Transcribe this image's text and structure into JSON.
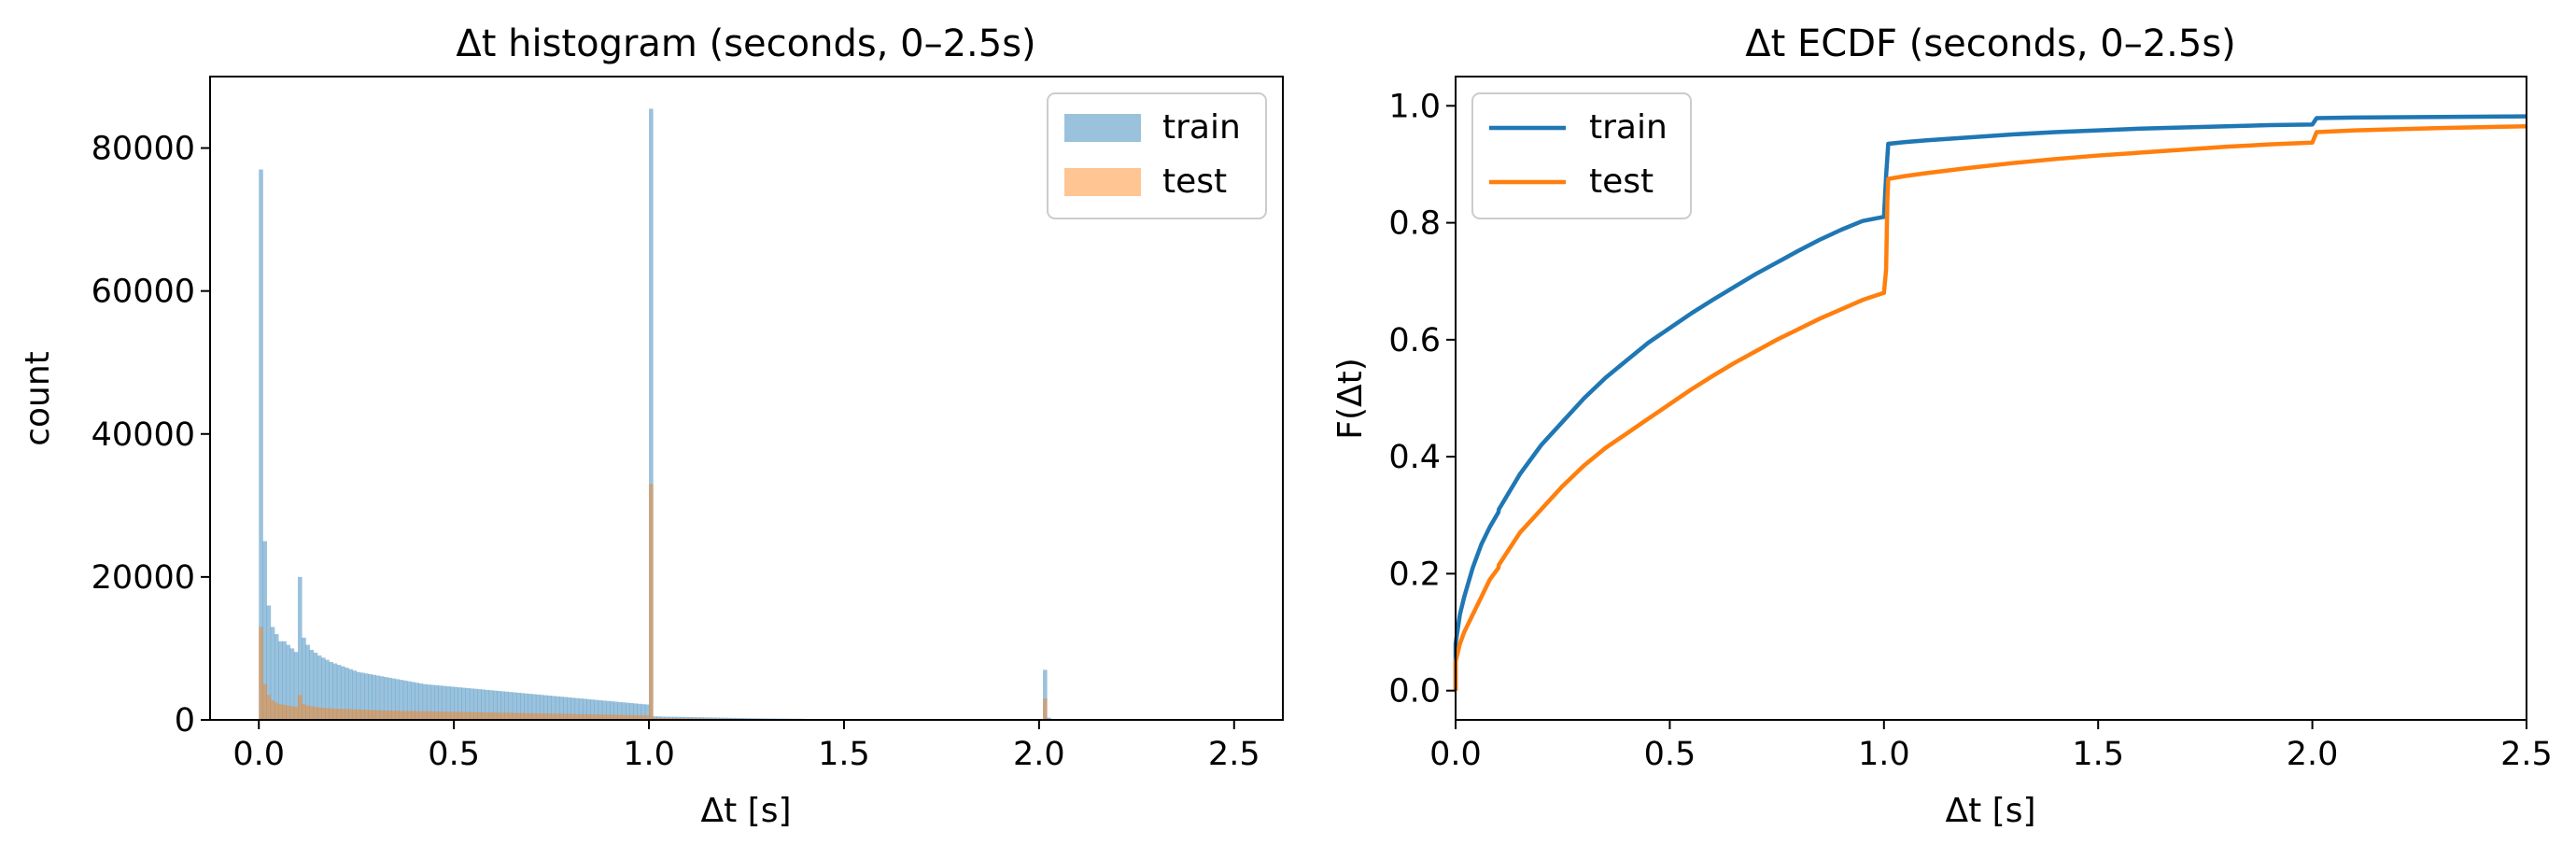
{
  "chart_data": [
    {
      "type": "histogram",
      "title": "Δt histogram (seconds, 0–2.5s)",
      "xlabel": "Δt [s]",
      "ylabel": "count",
      "xlim": [
        -0.125,
        2.625
      ],
      "ylim": [
        0,
        90000
      ],
      "xticks": [
        0.0,
        0.5,
        1.0,
        1.5,
        2.0,
        2.5
      ],
      "xtick_labels": [
        "0.0",
        "0.5",
        "1.0",
        "1.5",
        "2.0",
        "2.5"
      ],
      "yticks": [
        0,
        20000,
        40000,
        60000,
        80000
      ],
      "ytick_labels": [
        "0",
        "20000",
        "40000",
        "60000",
        "80000"
      ],
      "bin_width": 0.01,
      "grid": false,
      "legend": {
        "placement": "top-right",
        "entries": [
          "train",
          "test"
        ]
      },
      "series": [
        {
          "name": "train",
          "color": "#1f77b4",
          "alpha": 0.45,
          "counts": [
            77000,
            25000,
            16000,
            13000,
            12000,
            11000,
            11000,
            10500,
            10000,
            9500,
            20000,
            11500,
            10500,
            9800,
            9400,
            9000,
            8700,
            8400,
            8100,
            7900,
            7700,
            7500,
            7300,
            7100,
            6900,
            6700,
            6600,
            6500,
            6400,
            6300,
            6200,
            6100,
            6000,
            5900,
            5800,
            5700,
            5600,
            5500,
            5400,
            5300,
            5200,
            5100,
            5000,
            4950,
            4900,
            4850,
            4800,
            4750,
            4700,
            4650,
            4600,
            4550,
            4500,
            4450,
            4400,
            4350,
            4300,
            4250,
            4200,
            4150,
            4100,
            4050,
            4000,
            3950,
            3900,
            3850,
            3800,
            3750,
            3700,
            3650,
            3600,
            3550,
            3500,
            3450,
            3400,
            3350,
            3300,
            3250,
            3200,
            3150,
            3100,
            3050,
            3000,
            2950,
            2900,
            2850,
            2800,
            2750,
            2700,
            2650,
            2600,
            2550,
            2500,
            2450,
            2400,
            2350,
            2300,
            2250,
            2200,
            2150,
            85500,
            500,
            480,
            460,
            450,
            440,
            430,
            420,
            410,
            400,
            390,
            380,
            370,
            360,
            350,
            340,
            330,
            320,
            310,
            300,
            290,
            280,
            270,
            260,
            250,
            240,
            230,
            220,
            210,
            200,
            195,
            190,
            185,
            180,
            175,
            170,
            165,
            160,
            155,
            150,
            20,
            20,
            20,
            20,
            20,
            20,
            20,
            20,
            20,
            20,
            20,
            20,
            20,
            20,
            20,
            20,
            20,
            20,
            20,
            20,
            20,
            20,
            20,
            20,
            20,
            20,
            20,
            20,
            20,
            20,
            20,
            20,
            20,
            20,
            20,
            20,
            20,
            20,
            20,
            20,
            20,
            20,
            20,
            20,
            20,
            20,
            20,
            20,
            20,
            20,
            20,
            20,
            20,
            20,
            20,
            20,
            20,
            20,
            20,
            20,
            20,
            7000,
            300,
            0,
            0,
            0,
            0,
            0,
            0,
            0,
            0,
            0,
            0,
            0,
            0,
            0,
            0,
            0,
            0,
            0,
            0,
            0,
            0,
            0,
            0,
            0,
            0,
            0,
            0,
            0,
            0,
            0,
            0,
            0,
            0,
            0,
            0,
            0,
            0,
            0,
            0,
            0,
            0,
            0,
            0,
            0,
            0,
            0,
            0,
            0,
            0,
            0
          ]
        },
        {
          "name": "test",
          "color": "#ff7f0e",
          "alpha": 0.45,
          "counts": [
            13000,
            5000,
            3500,
            2700,
            2400,
            2200,
            2100,
            2000,
            1900,
            1850,
            3500,
            2200,
            2000,
            1900,
            1800,
            1750,
            1700,
            1650,
            1600,
            1580,
            1560,
            1540,
            1520,
            1500,
            1480,
            1460,
            1440,
            1420,
            1400,
            1380,
            1360,
            1340,
            1320,
            1300,
            1290,
            1280,
            1270,
            1260,
            1250,
            1240,
            1230,
            1220,
            1210,
            1200,
            1190,
            1180,
            1170,
            1160,
            1150,
            1140,
            1130,
            1120,
            1110,
            1100,
            1090,
            1080,
            1070,
            1060,
            1050,
            1040,
            1030,
            1020,
            1010,
            1000,
            990,
            980,
            970,
            960,
            950,
            940,
            930,
            920,
            910,
            900,
            890,
            880,
            870,
            860,
            850,
            840,
            830,
            820,
            810,
            800,
            790,
            780,
            770,
            760,
            750,
            740,
            730,
            720,
            710,
            700,
            690,
            680,
            670,
            660,
            650,
            640,
            33000,
            300,
            290,
            280,
            270,
            260,
            250,
            240,
            230,
            220,
            210,
            200,
            195,
            190,
            185,
            180,
            175,
            170,
            165,
            160,
            155,
            150,
            145,
            140,
            135,
            130,
            125,
            120,
            115,
            110,
            105,
            100,
            95,
            90,
            85,
            80,
            75,
            70,
            65,
            60,
            15,
            15,
            15,
            15,
            15,
            15,
            15,
            15,
            15,
            15,
            15,
            15,
            15,
            15,
            15,
            15,
            15,
            15,
            15,
            15,
            15,
            15,
            15,
            15,
            15,
            15,
            15,
            15,
            15,
            15,
            15,
            15,
            15,
            15,
            15,
            15,
            15,
            15,
            15,
            15,
            15,
            15,
            15,
            15,
            15,
            15,
            15,
            15,
            15,
            15,
            15,
            15,
            15,
            15,
            15,
            15,
            15,
            15,
            15,
            15,
            15,
            3000,
            150,
            0,
            0,
            0,
            0,
            0,
            0,
            0,
            0,
            0,
            0,
            0,
            0,
            0,
            0,
            0,
            0,
            0,
            0,
            0,
            0,
            0,
            0,
            0,
            0,
            0,
            0,
            0,
            0,
            0,
            0,
            0,
            0,
            0,
            0,
            0,
            0,
            0,
            0,
            0,
            0,
            0,
            0,
            0,
            0,
            0,
            0,
            0,
            0,
            0
          ]
        }
      ]
    },
    {
      "type": "line",
      "title": "Δt ECDF (seconds, 0–2.5s)",
      "xlabel": "Δt [s]",
      "ylabel": "F(Δt)",
      "xlim": [
        0,
        2.5
      ],
      "ylim": [
        -0.05,
        1.05
      ],
      "xticks": [
        0.0,
        0.5,
        1.0,
        1.5,
        2.0,
        2.5
      ],
      "xtick_labels": [
        "0.0",
        "0.5",
        "1.0",
        "1.5",
        "2.0",
        "2.5"
      ],
      "yticks": [
        0.0,
        0.2,
        0.4,
        0.6,
        0.8,
        1.0
      ],
      "ytick_labels": [
        "0.0",
        "0.2",
        "0.4",
        "0.6",
        "0.8",
        "1.0"
      ],
      "grid": false,
      "legend": {
        "placement": "top-left",
        "entries": [
          "train",
          "test"
        ]
      },
      "series": [
        {
          "name": "train",
          "color": "#1f77b4",
          "x": [
            0.0,
            0.0,
            0.01,
            0.02,
            0.04,
            0.06,
            0.08,
            0.1,
            0.101,
            0.15,
            0.2,
            0.25,
            0.3,
            0.35,
            0.4,
            0.45,
            0.5,
            0.55,
            0.6,
            0.65,
            0.7,
            0.75,
            0.8,
            0.85,
            0.9,
            0.95,
            0.999,
            1.0,
            1.005,
            1.01,
            1.05,
            1.1,
            1.2,
            1.3,
            1.4,
            1.5,
            1.6,
            1.7,
            1.8,
            1.9,
            1.999,
            2.0,
            2.01,
            2.1,
            2.3,
            2.5
          ],
          "y": [
            0.0,
            0.08,
            0.13,
            0.16,
            0.21,
            0.25,
            0.28,
            0.305,
            0.31,
            0.37,
            0.42,
            0.46,
            0.5,
            0.535,
            0.565,
            0.595,
            0.62,
            0.645,
            0.668,
            0.69,
            0.712,
            0.732,
            0.752,
            0.771,
            0.788,
            0.803,
            0.81,
            0.81,
            0.88,
            0.935,
            0.938,
            0.941,
            0.946,
            0.951,
            0.955,
            0.958,
            0.961,
            0.963,
            0.965,
            0.967,
            0.968,
            0.968,
            0.979,
            0.98,
            0.981,
            0.982
          ]
        },
        {
          "name": "test",
          "color": "#ff7f0e",
          "x": [
            0.0,
            0.0,
            0.01,
            0.02,
            0.04,
            0.06,
            0.08,
            0.1,
            0.101,
            0.15,
            0.2,
            0.25,
            0.3,
            0.35,
            0.4,
            0.45,
            0.5,
            0.55,
            0.6,
            0.65,
            0.7,
            0.75,
            0.8,
            0.85,
            0.9,
            0.95,
            0.999,
            1.0,
            1.005,
            1.008,
            1.01,
            1.05,
            1.1,
            1.2,
            1.3,
            1.4,
            1.5,
            1.6,
            1.7,
            1.8,
            1.9,
            1.999,
            2.0,
            2.01,
            2.1,
            2.3,
            2.5
          ],
          "y": [
            0.0,
            0.05,
            0.08,
            0.1,
            0.13,
            0.16,
            0.19,
            0.21,
            0.215,
            0.27,
            0.31,
            0.35,
            0.385,
            0.415,
            0.44,
            0.465,
            0.49,
            0.515,
            0.538,
            0.56,
            0.58,
            0.6,
            0.618,
            0.636,
            0.652,
            0.668,
            0.68,
            0.68,
            0.72,
            0.84,
            0.875,
            0.88,
            0.885,
            0.894,
            0.902,
            0.909,
            0.915,
            0.92,
            0.925,
            0.93,
            0.934,
            0.937,
            0.937,
            0.955,
            0.958,
            0.962,
            0.965
          ]
        }
      ]
    }
  ]
}
